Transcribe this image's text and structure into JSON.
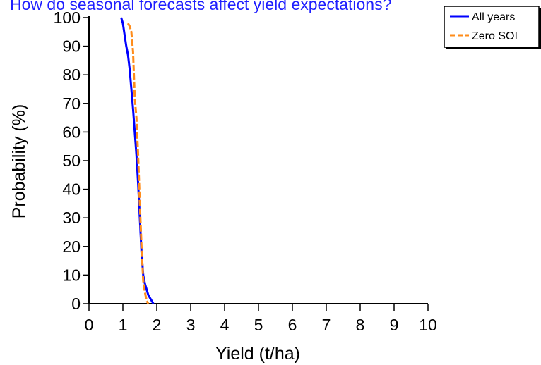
{
  "chart_data": {
    "type": "line",
    "title": "How do seasonal forecasts affect yield expectations?",
    "xlabel": "Yield (t/ha)",
    "ylabel": "Probability (%)",
    "xlim": [
      0,
      10
    ],
    "ylim": [
      0,
      100
    ],
    "x_ticks": [
      "0",
      "1",
      "2",
      "3",
      "4",
      "5",
      "6",
      "7",
      "8",
      "9",
      "10"
    ],
    "y_ticks": [
      "0",
      "10",
      "20",
      "30",
      "40",
      "50",
      "60",
      "70",
      "80",
      "90",
      "100"
    ],
    "grid": false,
    "legend_position": "top-right",
    "series": [
      {
        "name": "All years",
        "color": "#0000ff",
        "style": "solid",
        "x": [
          0.95,
          1.0,
          1.05,
          1.1,
          1.15,
          1.2,
          1.25,
          1.3,
          1.35,
          1.4,
          1.45,
          1.5,
          1.55,
          1.6,
          1.65,
          1.7,
          1.75,
          1.8,
          1.85,
          1.9
        ],
        "y": [
          100,
          98,
          94,
          90,
          87,
          82,
          75,
          68,
          60,
          52,
          42,
          30,
          18,
          10,
          7,
          5,
          3,
          2,
          1,
          0
        ]
      },
      {
        "name": "Zero SOI",
        "color": "#ff8c1a",
        "style": "dashed",
        "x": [
          1.15,
          1.2,
          1.25,
          1.3,
          1.35,
          1.4,
          1.45,
          1.5,
          1.55,
          1.6,
          1.65,
          1.7,
          1.75
        ],
        "y": [
          98,
          97,
          95,
          88,
          72,
          65,
          52,
          35,
          20,
          8,
          4,
          1,
          0
        ]
      }
    ]
  }
}
